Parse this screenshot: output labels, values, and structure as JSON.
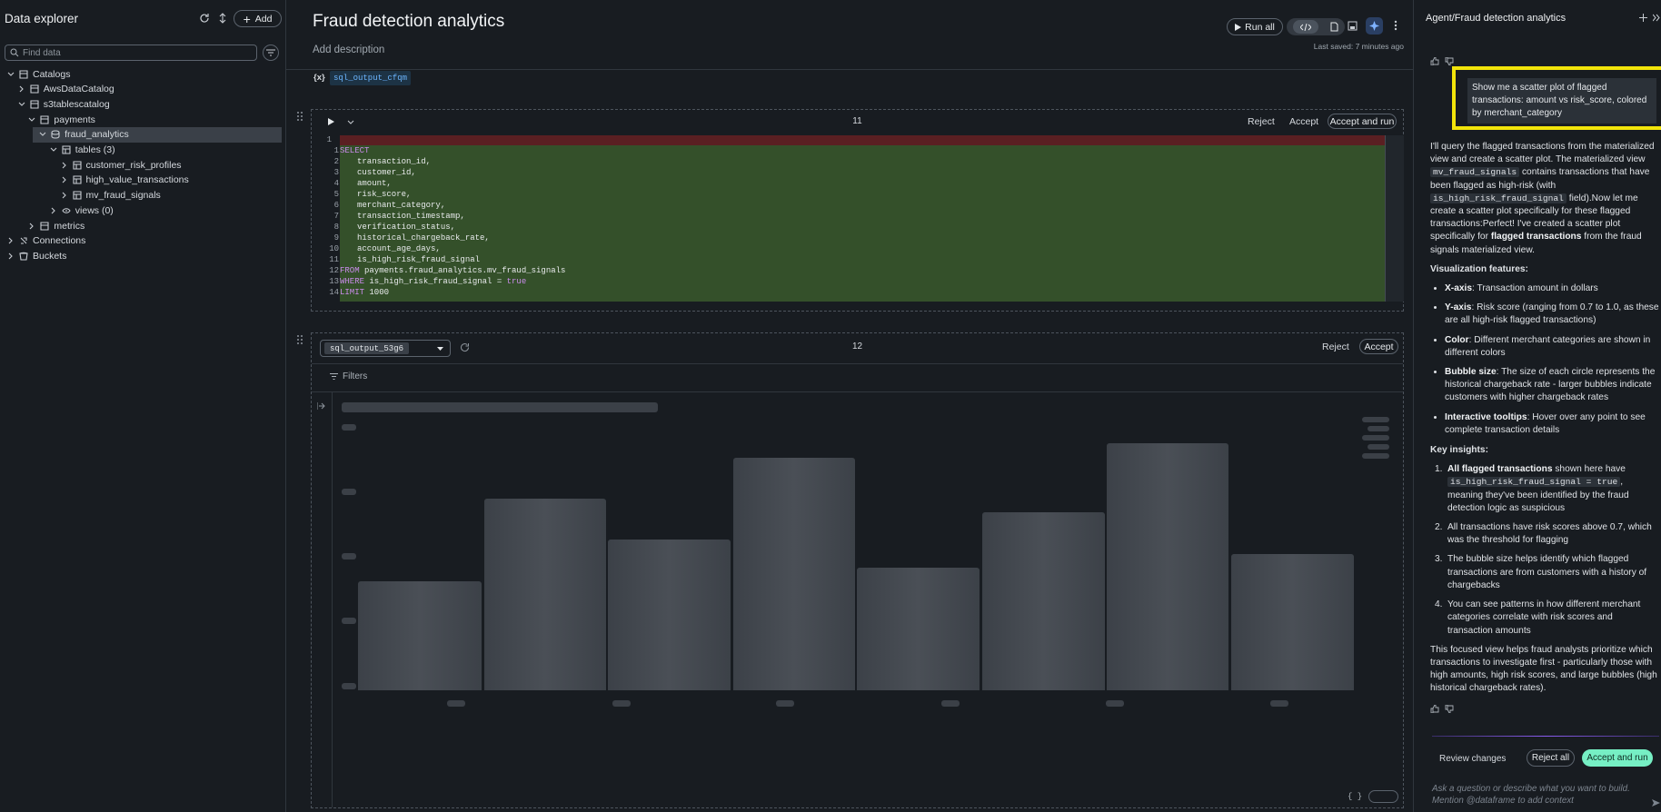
{
  "sidebar": {
    "title": "Data explorer",
    "add_button": "Add",
    "search_placeholder": "Find data",
    "tree": [
      {
        "label": "Catalogs"
      },
      {
        "label": "AwsDataCatalog"
      },
      {
        "label": "s3tablescatalog"
      },
      {
        "label": "payments"
      },
      {
        "label": "fraud_analytics"
      },
      {
        "label": "tables (3)"
      },
      {
        "label": "customer_risk_profiles"
      },
      {
        "label": "high_value_transactions"
      },
      {
        "label": "mv_fraud_signals"
      },
      {
        "label": "views (0)"
      },
      {
        "label": "metrics"
      },
      {
        "label": "Connections"
      },
      {
        "label": "Buckets"
      }
    ]
  },
  "notebook": {
    "title": "Fraud detection analytics",
    "description_placeholder": "Add description",
    "run_all": "Run all",
    "last_saved": "Last saved: 7 minutes ago",
    "variable_icon": "{x}",
    "variable": "sql_output_cfqm",
    "cells": [
      {
        "number": 11,
        "actions": [
          "Reject",
          "Accept",
          "Accept and run"
        ],
        "deleted_line_number": 1,
        "code": [
          {
            "n": 1,
            "keyword": "SELECT"
          },
          {
            "n": 2,
            "text": "transaction_id,"
          },
          {
            "n": 3,
            "text": "customer_id,"
          },
          {
            "n": 4,
            "text": "amount,"
          },
          {
            "n": 5,
            "text": "risk_score,"
          },
          {
            "n": 6,
            "text": "merchant_category,"
          },
          {
            "n": 7,
            "text": "transaction_timestamp,"
          },
          {
            "n": 8,
            "text": "verification_status,"
          },
          {
            "n": 9,
            "text": "historical_chargeback_rate,"
          },
          {
            "n": 10,
            "text": "account_age_days,"
          },
          {
            "n": 11,
            "text": "is_high_risk_fraud_signal"
          },
          {
            "n": 12,
            "keyword": "FROM",
            "text": "payments.fraud_analytics.mv_fraud_signals"
          },
          {
            "n": 13,
            "keyword": "WHERE",
            "text": "is_high_risk_fraud_signal =",
            "literal": "true"
          },
          {
            "n": 14,
            "keyword": "LIMIT",
            "text": "1000"
          }
        ]
      },
      {
        "number": 12,
        "output_name": "sql_output_53g6",
        "actions": [
          "Reject",
          "Accept"
        ],
        "filters": "Filters",
        "footer_icon": "{ }"
      }
    ]
  },
  "agent": {
    "title": "Agent/Fraud detection analytics",
    "user_message": "Show me a scatter plot of flagged transactions: amount vs risk_score, colored by merchant_category",
    "intro": [
      {
        "text": "I'll query the flagged transactions from the materialized view and create a scatter plot. The materialized view "
      },
      {
        "code": "mv_fraud_signals"
      },
      {
        "text": " contains transactions that have been flagged as high-risk (with "
      },
      {
        "code": "is_high_risk_fraud_signal"
      },
      {
        "text": " field).Now let me create a scatter plot specifically for these flagged transactions:Perfect! I've created a scatter plot specifically for "
      },
      {
        "bold": "flagged transactions"
      },
      {
        "text": " from the fraud signals materialized view."
      }
    ],
    "features_heading": "Visualization features:",
    "features": [
      [
        {
          "bold": "X-axis"
        },
        {
          "text": ": Transaction amount in dollars"
        }
      ],
      [
        {
          "bold": "Y-axis"
        },
        {
          "text": ": Risk score (ranging from 0.7 to 1.0, as these are all high-risk flagged transactions)"
        }
      ],
      [
        {
          "bold": "Color"
        },
        {
          "text": ": Different merchant categories are shown in different colors"
        }
      ],
      [
        {
          "bold": "Bubble size"
        },
        {
          "text": ": The size of each circle represents the historical chargeback rate - larger bubbles indicate customers with higher chargeback rates"
        }
      ],
      [
        {
          "bold": "Interactive tooltips"
        },
        {
          "text": ": Hover over any point to see complete transaction details"
        }
      ]
    ],
    "insights_heading": "Key insights:",
    "insights": [
      {
        "marker": "1.",
        "runs": [
          {
            "bold": "All flagged transactions"
          },
          {
            "text": " shown here have "
          },
          {
            "code": "is_high_risk_fraud_signal = true"
          },
          {
            "text": ", meaning they've been identified by the fraud detection logic as suspicious"
          }
        ]
      },
      {
        "marker": "2.",
        "runs": [
          {
            "text": "All transactions have risk scores above 0.7, which was the threshold for flagging"
          }
        ]
      },
      {
        "marker": "3.",
        "runs": [
          {
            "text": "The bubble size helps identify which flagged transactions are from customers with a history of chargebacks"
          }
        ]
      },
      {
        "marker": "4.",
        "runs": [
          {
            "text": "You can see patterns in how different merchant categories correlate with risk scores and transaction amounts"
          }
        ]
      }
    ],
    "closing": "This focused view helps fraud analysts prioritize which transactions to investigate first - particularly those with high amounts, high risk scores, and large bubbles (high historical chargeback rates).",
    "review_changes": "Review changes",
    "reject_all": "Reject all",
    "accept_and_run": "Accept and run",
    "input_placeholder": "Ask a question or describe what you want to build. Mention @dataframe to add context"
  }
}
